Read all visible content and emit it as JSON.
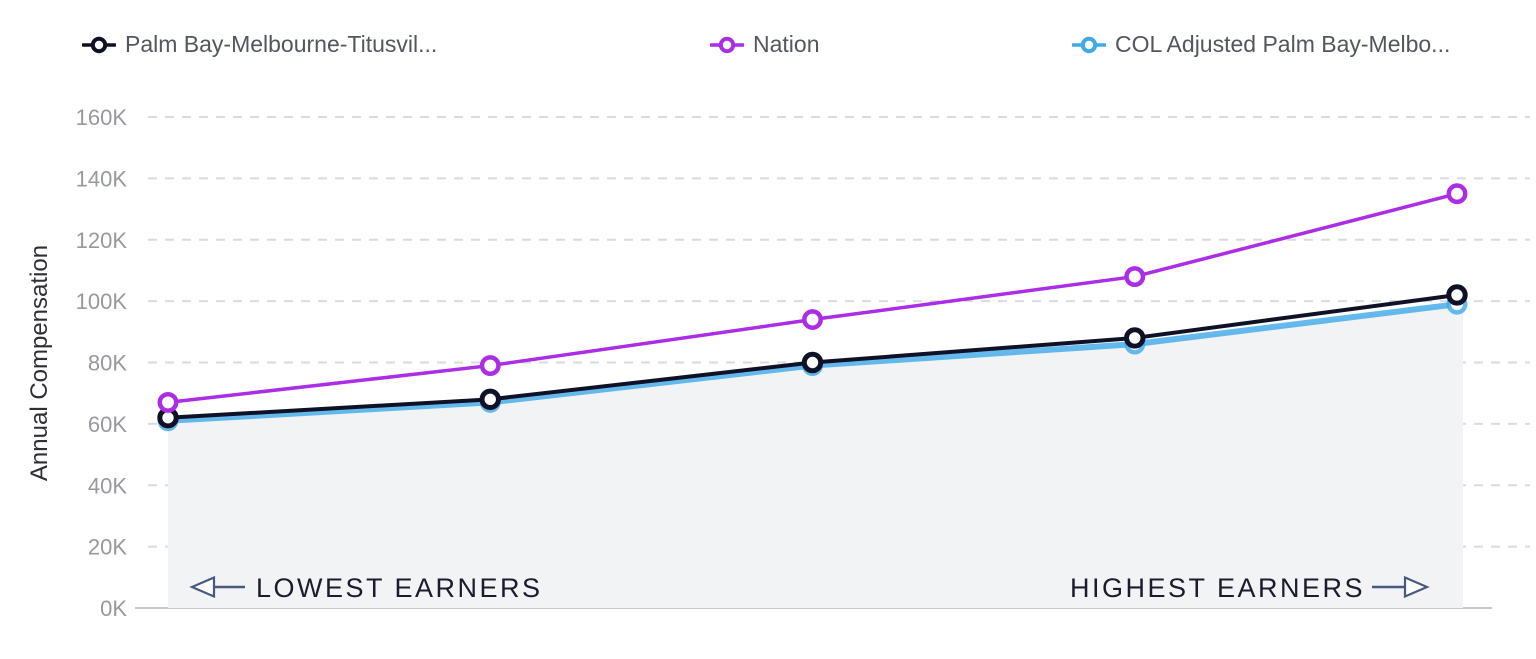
{
  "legend": {
    "items": [
      {
        "label": "Palm Bay-Melbourne-Titusvil...",
        "color": "#0f1126"
      },
      {
        "label": "Nation",
        "color": "#ab2de6"
      },
      {
        "label": "COL Adjusted Palm Bay-Melbo...",
        "color": "#3fa9e9"
      }
    ]
  },
  "chart_data": {
    "type": "line",
    "title": "",
    "xlabel": "",
    "ylabel": "Annual Compensation",
    "x_tick_labels_visible": false,
    "x_points": [
      1,
      2,
      3,
      4,
      5
    ],
    "series": [
      {
        "name": "Palm Bay-Melbourne-Titusvil...",
        "color": "#0f1126",
        "values_thousands": [
          62,
          68,
          80,
          88,
          102
        ]
      },
      {
        "name": "Nation",
        "color": "#ab2de6",
        "values_thousands": [
          67,
          79,
          94,
          108,
          135
        ]
      },
      {
        "name": "COL Adjusted Palm Bay-Melbo...",
        "color": "#3fa9e9",
        "values_thousands": [
          61,
          67,
          79,
          86,
          99
        ]
      }
    ],
    "ylim": [
      0,
      160
    ],
    "ytick_step": 20,
    "ytick_labels": [
      "0K",
      "20K",
      "40K",
      "60K",
      "80K",
      "100K",
      "120K",
      "140K",
      "160K"
    ],
    "grid": "horizontal-dashed",
    "legend_position": "top",
    "area_fill_under_lowest_series": true,
    "annotations": {
      "left": "LOWEST EARNERS",
      "right": "HIGHEST EARNERS"
    },
    "colors": {
      "gridline": "#dadbde",
      "axis_line": "#c5c7ca",
      "tick_text": "#97999f",
      "annotation_text": "#1a1b2d",
      "arrow": "#47597f",
      "area_fill": "#f2f3f5"
    }
  }
}
